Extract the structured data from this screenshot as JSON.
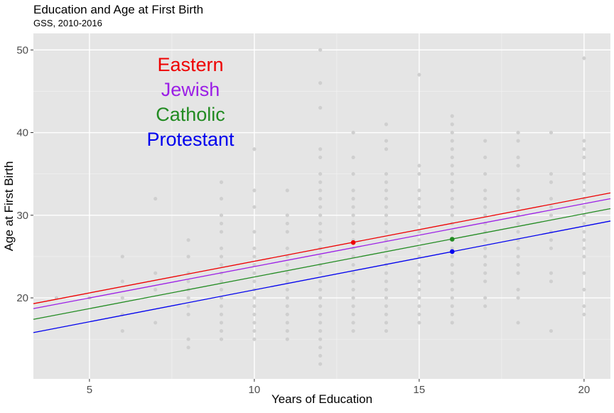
{
  "chart_data": {
    "type": "scatter",
    "title": "Education and Age at First Birth",
    "subtitle": "GSS, 2010-2016",
    "xlabel": "Years of Education",
    "ylabel": "Age at First Birth",
    "xlim": [
      3.3,
      20.8
    ],
    "ylim": [
      10.2,
      52.0
    ],
    "x_ticks": [
      5,
      10,
      15,
      20
    ],
    "y_ticks": [
      20,
      30,
      40,
      50
    ],
    "grid": true,
    "colors": {
      "panel": "#e5e5e5",
      "grid_major": "#ffffff",
      "points": "#cfcfcf",
      "Eastern": "#ee0000",
      "Jewish": "#9b1fe6",
      "Catholic": "#228b22",
      "Protestant": "#0000ee"
    },
    "legend": {
      "placement": "top-left",
      "entries": [
        "Eastern",
        "Jewish",
        "Catholic",
        "Protestant"
      ]
    },
    "scatter_points": [
      {
        "x": 4,
        "ys": [
          20
        ]
      },
      {
        "x": 5,
        "ys": [
          20
        ]
      },
      {
        "x": 6,
        "ys": [
          16,
          18,
          20,
          22,
          25
        ]
      },
      {
        "x": 7,
        "ys": [
          17,
          21,
          23,
          32
        ]
      },
      {
        "x": 8,
        "ys": [
          14,
          15,
          18,
          19,
          20,
          21,
          22,
          23,
          25,
          27
        ]
      },
      {
        "x": 9,
        "ys": [
          15,
          16,
          17,
          18,
          19,
          20,
          21,
          22,
          23,
          24,
          25,
          26,
          28,
          29,
          30,
          32,
          34
        ]
      },
      {
        "x": 10,
        "ys": [
          15,
          16,
          17,
          18,
          19,
          20,
          21,
          22,
          23,
          24,
          25,
          26,
          28,
          31,
          33,
          38
        ]
      },
      {
        "x": 11,
        "ys": [
          15,
          16,
          17,
          18,
          19,
          20,
          21,
          22,
          23,
          24,
          25,
          26,
          28,
          29,
          30,
          33
        ]
      },
      {
        "x": 12,
        "ys": [
          12,
          13,
          14,
          15,
          16,
          17,
          18,
          19,
          20,
          21,
          22,
          23,
          24,
          25,
          26,
          27,
          28,
          29,
          30,
          31,
          32,
          33,
          34,
          35,
          37,
          38,
          43,
          46,
          50
        ]
      },
      {
        "x": 13,
        "ys": [
          16,
          17,
          18,
          19,
          20,
          21,
          22,
          23,
          24,
          25,
          26,
          27,
          28,
          29,
          30,
          31,
          32,
          33,
          35,
          37,
          40
        ]
      },
      {
        "x": 14,
        "ys": [
          16,
          17,
          18,
          19,
          20,
          21,
          22,
          23,
          24,
          25,
          26,
          27,
          28,
          29,
          30,
          31,
          32,
          33,
          34,
          35,
          38,
          39,
          41
        ]
      },
      {
        "x": 15,
        "ys": [
          17,
          18,
          19,
          20,
          21,
          22,
          23,
          24,
          25,
          26,
          27,
          28,
          29,
          30,
          31,
          32,
          33,
          35,
          36,
          47
        ]
      },
      {
        "x": 16,
        "ys": [
          17,
          18,
          19,
          20,
          21,
          22,
          23,
          24,
          25,
          26,
          27,
          28,
          29,
          30,
          31,
          32,
          33,
          34,
          35,
          36,
          37,
          38,
          39,
          40,
          41,
          42
        ]
      },
      {
        "x": 17,
        "ys": [
          19,
          20,
          22,
          23,
          24,
          25,
          26,
          27,
          28,
          29,
          30,
          31,
          32,
          33,
          35,
          37,
          39
        ]
      },
      {
        "x": 18,
        "ys": [
          17,
          20,
          21,
          23,
          24,
          25,
          26,
          27,
          28,
          29,
          30,
          31,
          32,
          33,
          36,
          37,
          39,
          40
        ]
      },
      {
        "x": 19,
        "ys": [
          16,
          22,
          23,
          26,
          27,
          28,
          30,
          31,
          32,
          34,
          35,
          40
        ]
      },
      {
        "x": 20,
        "ys": [
          18,
          19,
          21,
          23,
          25,
          26,
          27,
          28,
          29,
          30,
          31,
          32,
          33,
          34,
          35,
          37,
          38,
          39,
          49
        ]
      }
    ],
    "series": [
      {
        "name": "Eastern",
        "line": [
          [
            3.3,
            19.3
          ],
          [
            20.8,
            32.7
          ]
        ],
        "marker": [
          13,
          26.7
        ]
      },
      {
        "name": "Jewish",
        "line": [
          [
            3.3,
            18.7
          ],
          [
            20.8,
            32.0
          ]
        ],
        "marker": null
      },
      {
        "name": "Catholic",
        "line": [
          [
            3.3,
            17.4
          ],
          [
            20.8,
            30.8
          ]
        ],
        "marker": [
          16,
          27.1
        ]
      },
      {
        "name": "Protestant",
        "line": [
          [
            3.3,
            15.8
          ],
          [
            20.8,
            29.3
          ]
        ],
        "marker": [
          16,
          25.6
        ]
      }
    ]
  }
}
